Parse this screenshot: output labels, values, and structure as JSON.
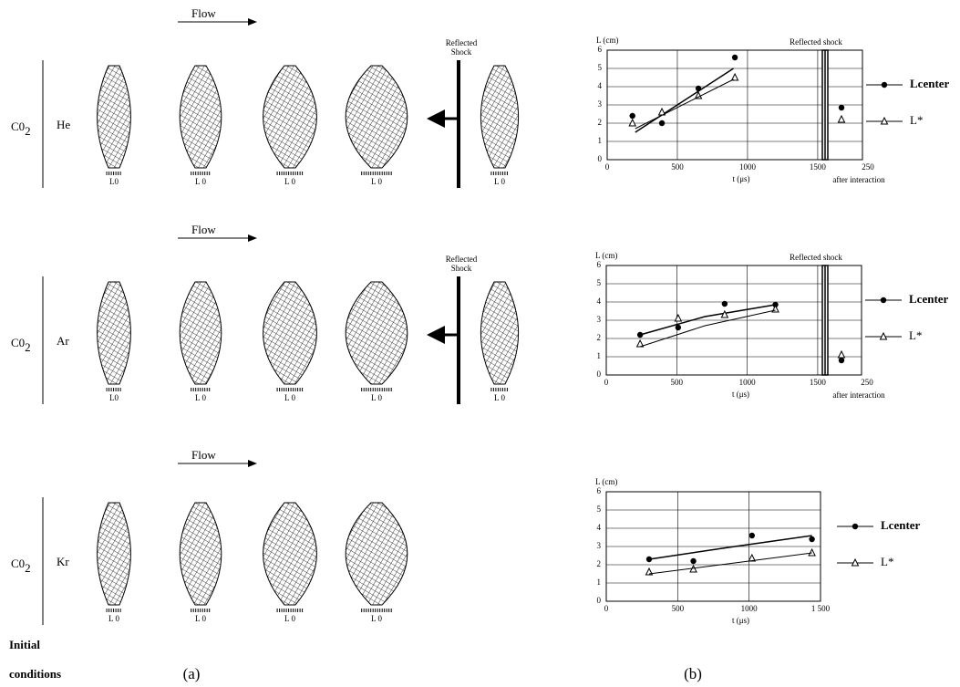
{
  "figure": {
    "flow": "Flow",
    "reflected_shock": [
      "Reflected",
      "Shock"
    ],
    "initial": [
      "Initial",
      "conditions"
    ],
    "label_a": "(a)",
    "label_b": "(b)",
    "rows": [
      {
        "gas_a": "C0",
        "gas_a_sub": "2",
        "gas_b": "He",
        "scales": [
          "L0",
          "L   0",
          "L      0",
          "L      0",
          "L  0"
        ],
        "shock": true
      },
      {
        "gas_a": "C0",
        "gas_a_sub": "2",
        "gas_b": "Ar",
        "scales": [
          "L0",
          "L     0",
          "L      0",
          "L      0",
          "L  0"
        ],
        "shock": true
      },
      {
        "gas_a": "C0",
        "gas_a_sub": "2",
        "gas_b": "Kr",
        "scales": [
          "L  0",
          "L  0",
          "L  0",
          "L  0"
        ],
        "shock": false
      }
    ]
  },
  "chart_data": [
    {
      "type": "scatter",
      "ylabel": "L (cm)",
      "xlabel": "t (μs)",
      "xlim": [
        0,
        1520
      ],
      "ylim": [
        0,
        6
      ],
      "yticks": [
        0,
        1,
        2,
        3,
        4,
        5,
        6
      ],
      "xticks": [
        0,
        500,
        1000,
        1500
      ],
      "grid": true,
      "shock_label": "Reflected shock",
      "after": {
        "tick": "250",
        "label": "after interaction"
      },
      "series": [
        {
          "name": "Lcenter",
          "marker": "circle",
          "x": [
            180,
            390,
            650,
            910
          ],
          "values": [
            2.4,
            2.0,
            3.9,
            5.6
          ],
          "after_value": 2.85,
          "fit_x": [
            200,
            900
          ],
          "fit_values": [
            1.5,
            5.0
          ]
        },
        {
          "name": "L*",
          "marker": "triangle",
          "x": [
            180,
            390,
            650,
            910
          ],
          "values": [
            2.0,
            2.6,
            3.5,
            4.5
          ],
          "after_value": 2.2,
          "fit_x": [
            200,
            900
          ],
          "fit_values": [
            1.7,
            4.4
          ]
        }
      ]
    },
    {
      "type": "scatter",
      "ylabel": "L (cm)",
      "xlabel": "t (μs)",
      "xlim": [
        0,
        1520
      ],
      "ylim": [
        0,
        6
      ],
      "yticks": [
        0,
        1,
        2,
        3,
        4,
        5,
        6
      ],
      "xticks": [
        0,
        500,
        1000,
        1500
      ],
      "grid": true,
      "shock_label": "Reflected shock",
      "after": {
        "tick": "250",
        "label": "after interaction"
      },
      "series": [
        {
          "name": "Lcenter",
          "marker": "circle",
          "x": [
            240,
            510,
            840,
            1200
          ],
          "values": [
            2.2,
            2.6,
            3.9,
            3.85
          ],
          "after_value": 0.8,
          "fit_x": [
            240,
            700,
            1200
          ],
          "fit_values": [
            2.2,
            3.2,
            3.85
          ]
        },
        {
          "name": "L*",
          "marker": "triangle",
          "x": [
            240,
            510,
            840,
            1200
          ],
          "values": [
            1.7,
            3.1,
            3.3,
            3.6
          ],
          "after_value": 1.1,
          "fit_x": [
            240,
            700,
            1200
          ],
          "fit_values": [
            1.55,
            2.7,
            3.55
          ]
        }
      ]
    },
    {
      "type": "scatter",
      "ylabel": "L (cm)",
      "xlabel": "t (μs)",
      "xlim": [
        0,
        1500
      ],
      "ylim": [
        0,
        6
      ],
      "yticks": [
        0,
        1,
        2,
        3,
        4,
        5,
        6
      ],
      "xticks": [
        0,
        500,
        1000,
        {
          "value": 1500,
          "label": "1 500"
        }
      ],
      "grid": true,
      "series": [
        {
          "name": "Lcenter",
          "marker": "circle",
          "x": [
            300,
            610,
            1020,
            1440
          ],
          "values": [
            2.3,
            2.2,
            3.6,
            3.4
          ],
          "fit_x": [
            300,
            900,
            1440
          ],
          "fit_values": [
            2.3,
            3.0,
            3.6
          ]
        },
        {
          "name": "L*",
          "marker": "triangle",
          "x": [
            300,
            610,
            1020,
            1440
          ],
          "values": [
            1.6,
            1.75,
            2.35,
            2.65
          ],
          "fit_x": [
            300,
            900,
            1440
          ],
          "fit_values": [
            1.5,
            2.1,
            2.65
          ]
        }
      ]
    }
  ]
}
